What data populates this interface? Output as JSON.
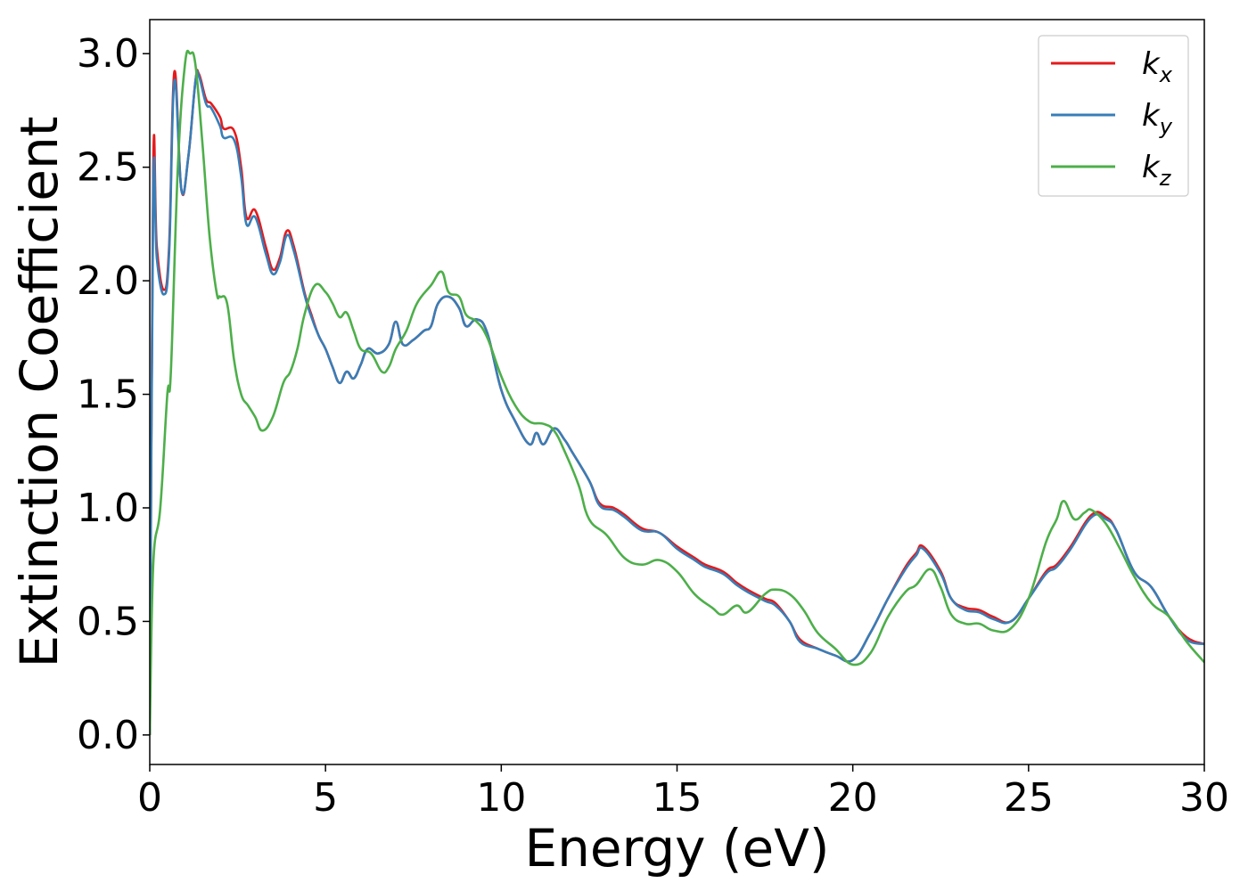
{
  "chart_data": {
    "type": "line",
    "title": "",
    "xlabel": "Energy (eV)",
    "ylabel": "Extinction Coefficient",
    "xlim": [
      0,
      30
    ],
    "ylim": [
      -0.13,
      3.15
    ],
    "xticks": [
      0,
      5,
      10,
      15,
      20,
      25,
      30
    ],
    "xtick_labels": [
      "0",
      "5",
      "10",
      "15",
      "20",
      "25",
      "30"
    ],
    "yticks": [
      0.0,
      0.5,
      1.0,
      1.5,
      2.0,
      2.5,
      3.0
    ],
    "ytick_labels": [
      "0.0",
      "0.5",
      "1.0",
      "1.5",
      "2.0",
      "2.5",
      "3.0"
    ],
    "grid": false,
    "legend_position": "top-right",
    "series": [
      {
        "name": "k",
        "subscript": "x",
        "color": "#e41a1c",
        "points": [
          [
            0,
            0
          ],
          [
            0.1,
            2.5
          ],
          [
            0.2,
            2.15
          ],
          [
            0.4,
            1.96
          ],
          [
            0.55,
            2.15
          ],
          [
            0.7,
            2.92
          ],
          [
            0.9,
            2.4
          ],
          [
            1.1,
            2.55
          ],
          [
            1.3,
            2.88
          ],
          [
            1.4,
            2.91
          ],
          [
            1.6,
            2.8
          ],
          [
            1.75,
            2.78
          ],
          [
            2.0,
            2.72
          ],
          [
            2.1,
            2.67
          ],
          [
            2.4,
            2.66
          ],
          [
            2.6,
            2.5
          ],
          [
            2.75,
            2.28
          ],
          [
            3.0,
            2.31
          ],
          [
            3.3,
            2.15
          ],
          [
            3.5,
            2.05
          ],
          [
            3.7,
            2.1
          ],
          [
            3.9,
            2.22
          ],
          [
            4.1,
            2.15
          ],
          [
            4.4,
            1.95
          ],
          [
            4.6,
            1.85
          ],
          [
            4.8,
            1.76
          ],
          [
            5.0,
            1.7
          ],
          [
            5.2,
            1.62
          ],
          [
            5.4,
            1.55
          ],
          [
            5.6,
            1.6
          ],
          [
            5.8,
            1.57
          ],
          [
            6.0,
            1.63
          ],
          [
            6.2,
            1.7
          ],
          [
            6.5,
            1.68
          ],
          [
            6.8,
            1.72
          ],
          [
            7.0,
            1.82
          ],
          [
            7.2,
            1.72
          ],
          [
            7.5,
            1.74
          ],
          [
            7.8,
            1.78
          ],
          [
            8.0,
            1.8
          ],
          [
            8.2,
            1.9
          ],
          [
            8.5,
            1.93
          ],
          [
            8.8,
            1.88
          ],
          [
            9.0,
            1.8
          ],
          [
            9.3,
            1.83
          ],
          [
            9.6,
            1.77
          ],
          [
            10.0,
            1.52
          ],
          [
            10.4,
            1.38
          ],
          [
            10.8,
            1.28
          ],
          [
            11.0,
            1.33
          ],
          [
            11.2,
            1.28
          ],
          [
            11.5,
            1.35
          ],
          [
            11.8,
            1.3
          ],
          [
            12.0,
            1.25
          ],
          [
            12.5,
            1.12
          ],
          [
            12.8,
            1.02
          ],
          [
            13.2,
            1.0
          ],
          [
            13.5,
            0.97
          ],
          [
            14.0,
            0.91
          ],
          [
            14.5,
            0.89
          ],
          [
            15.0,
            0.83
          ],
          [
            15.5,
            0.78
          ],
          [
            15.8,
            0.75
          ],
          [
            16.3,
            0.72
          ],
          [
            16.7,
            0.67
          ],
          [
            17.0,
            0.64
          ],
          [
            17.5,
            0.6
          ],
          [
            17.8,
            0.58
          ],
          [
            18.2,
            0.5
          ],
          [
            18.5,
            0.42
          ],
          [
            19.0,
            0.38
          ],
          [
            19.5,
            0.35
          ],
          [
            20.0,
            0.33
          ],
          [
            20.5,
            0.45
          ],
          [
            21.0,
            0.6
          ],
          [
            21.5,
            0.74
          ],
          [
            21.8,
            0.8
          ],
          [
            22.0,
            0.83
          ],
          [
            22.5,
            0.72
          ],
          [
            22.8,
            0.6
          ],
          [
            23.2,
            0.56
          ],
          [
            23.6,
            0.55
          ],
          [
            24.0,
            0.52
          ],
          [
            24.5,
            0.5
          ],
          [
            25.0,
            0.6
          ],
          [
            25.5,
            0.72
          ],
          [
            25.8,
            0.75
          ],
          [
            26.2,
            0.83
          ],
          [
            26.8,
            0.97
          ],
          [
            27.2,
            0.96
          ],
          [
            27.5,
            0.9
          ],
          [
            28.0,
            0.72
          ],
          [
            28.5,
            0.65
          ],
          [
            29.0,
            0.52
          ],
          [
            29.5,
            0.43
          ],
          [
            30.0,
            0.4
          ]
        ]
      },
      {
        "name": "k",
        "subscript": "y",
        "color": "#377eb8",
        "points": [
          [
            0,
            0
          ],
          [
            0.1,
            2.4
          ],
          [
            0.2,
            2.1
          ],
          [
            0.4,
            1.94
          ],
          [
            0.55,
            2.12
          ],
          [
            0.7,
            2.88
          ],
          [
            0.9,
            2.4
          ],
          [
            1.1,
            2.55
          ],
          [
            1.3,
            2.88
          ],
          [
            1.4,
            2.9
          ],
          [
            1.6,
            2.78
          ],
          [
            1.75,
            2.76
          ],
          [
            2.0,
            2.68
          ],
          [
            2.1,
            2.63
          ],
          [
            2.4,
            2.62
          ],
          [
            2.6,
            2.46
          ],
          [
            2.75,
            2.25
          ],
          [
            3.0,
            2.28
          ],
          [
            3.3,
            2.12
          ],
          [
            3.5,
            2.03
          ],
          [
            3.7,
            2.08
          ],
          [
            3.9,
            2.2
          ],
          [
            4.1,
            2.13
          ],
          [
            4.4,
            1.94
          ],
          [
            4.6,
            1.84
          ],
          [
            4.8,
            1.76
          ],
          [
            5.0,
            1.7
          ],
          [
            5.2,
            1.62
          ],
          [
            5.4,
            1.55
          ],
          [
            5.6,
            1.6
          ],
          [
            5.8,
            1.57
          ],
          [
            6.0,
            1.63
          ],
          [
            6.2,
            1.7
          ],
          [
            6.5,
            1.68
          ],
          [
            6.8,
            1.72
          ],
          [
            7.0,
            1.82
          ],
          [
            7.2,
            1.72
          ],
          [
            7.5,
            1.74
          ],
          [
            7.8,
            1.78
          ],
          [
            8.0,
            1.8
          ],
          [
            8.2,
            1.9
          ],
          [
            8.5,
            1.93
          ],
          [
            8.8,
            1.88
          ],
          [
            9.0,
            1.8
          ],
          [
            9.3,
            1.83
          ],
          [
            9.6,
            1.77
          ],
          [
            10.0,
            1.52
          ],
          [
            10.4,
            1.38
          ],
          [
            10.8,
            1.28
          ],
          [
            11.0,
            1.33
          ],
          [
            11.2,
            1.28
          ],
          [
            11.5,
            1.35
          ],
          [
            11.8,
            1.3
          ],
          [
            12.0,
            1.25
          ],
          [
            12.5,
            1.12
          ],
          [
            12.8,
            1.01
          ],
          [
            13.2,
            0.99
          ],
          [
            13.5,
            0.96
          ],
          [
            14.0,
            0.9
          ],
          [
            14.5,
            0.89
          ],
          [
            15.0,
            0.82
          ],
          [
            15.5,
            0.77
          ],
          [
            15.8,
            0.74
          ],
          [
            16.3,
            0.71
          ],
          [
            16.7,
            0.66
          ],
          [
            17.0,
            0.63
          ],
          [
            17.5,
            0.59
          ],
          [
            17.8,
            0.57
          ],
          [
            18.2,
            0.5
          ],
          [
            18.5,
            0.41
          ],
          [
            19.0,
            0.38
          ],
          [
            19.5,
            0.35
          ],
          [
            20.0,
            0.33
          ],
          [
            20.5,
            0.45
          ],
          [
            21.0,
            0.6
          ],
          [
            21.5,
            0.73
          ],
          [
            21.8,
            0.79
          ],
          [
            22.0,
            0.82
          ],
          [
            22.5,
            0.71
          ],
          [
            22.8,
            0.6
          ],
          [
            23.2,
            0.55
          ],
          [
            23.6,
            0.54
          ],
          [
            24.0,
            0.51
          ],
          [
            24.5,
            0.5
          ],
          [
            25.0,
            0.6
          ],
          [
            25.5,
            0.71
          ],
          [
            25.8,
            0.74
          ],
          [
            26.2,
            0.82
          ],
          [
            26.8,
            0.96
          ],
          [
            27.2,
            0.95
          ],
          [
            27.5,
            0.9
          ],
          [
            28.0,
            0.72
          ],
          [
            28.5,
            0.65
          ],
          [
            29.0,
            0.52
          ],
          [
            29.5,
            0.42
          ],
          [
            30.0,
            0.4
          ]
        ]
      },
      {
        "name": "k",
        "subscript": "z",
        "color": "#4daf4a",
        "points": [
          [
            0,
            0
          ],
          [
            0.1,
            0.75
          ],
          [
            0.3,
            1.0
          ],
          [
            0.5,
            1.5
          ],
          [
            0.6,
            1.6
          ],
          [
            0.8,
            2.5
          ],
          [
            1.0,
            2.95
          ],
          [
            1.15,
            3.0
          ],
          [
            1.3,
            2.95
          ],
          [
            1.5,
            2.6
          ],
          [
            1.7,
            2.2
          ],
          [
            1.9,
            1.95
          ],
          [
            2.0,
            1.93
          ],
          [
            2.2,
            1.9
          ],
          [
            2.4,
            1.65
          ],
          [
            2.6,
            1.5
          ],
          [
            2.8,
            1.45
          ],
          [
            3.0,
            1.4
          ],
          [
            3.2,
            1.34
          ],
          [
            3.5,
            1.4
          ],
          [
            3.8,
            1.55
          ],
          [
            4.0,
            1.6
          ],
          [
            4.2,
            1.7
          ],
          [
            4.4,
            1.85
          ],
          [
            4.7,
            1.98
          ],
          [
            5.0,
            1.95
          ],
          [
            5.2,
            1.9
          ],
          [
            5.4,
            1.84
          ],
          [
            5.6,
            1.86
          ],
          [
            5.8,
            1.78
          ],
          [
            6.0,
            1.7
          ],
          [
            6.3,
            1.68
          ],
          [
            6.6,
            1.6
          ],
          [
            6.8,
            1.62
          ],
          [
            7.0,
            1.7
          ],
          [
            7.3,
            1.78
          ],
          [
            7.6,
            1.9
          ],
          [
            8.0,
            1.98
          ],
          [
            8.3,
            2.04
          ],
          [
            8.5,
            1.95
          ],
          [
            8.8,
            1.93
          ],
          [
            9.0,
            1.85
          ],
          [
            9.3,
            1.82
          ],
          [
            9.6,
            1.75
          ],
          [
            10.0,
            1.58
          ],
          [
            10.4,
            1.45
          ],
          [
            10.8,
            1.38
          ],
          [
            11.2,
            1.37
          ],
          [
            11.5,
            1.34
          ],
          [
            11.8,
            1.25
          ],
          [
            12.2,
            1.1
          ],
          [
            12.5,
            0.95
          ],
          [
            13.0,
            0.88
          ],
          [
            13.5,
            0.78
          ],
          [
            14.0,
            0.75
          ],
          [
            14.5,
            0.77
          ],
          [
            15.0,
            0.72
          ],
          [
            15.5,
            0.62
          ],
          [
            16.0,
            0.56
          ],
          [
            16.3,
            0.53
          ],
          [
            16.7,
            0.57
          ],
          [
            17.0,
            0.54
          ],
          [
            17.5,
            0.62
          ],
          [
            17.8,
            0.64
          ],
          [
            18.2,
            0.62
          ],
          [
            18.6,
            0.55
          ],
          [
            19.0,
            0.45
          ],
          [
            19.5,
            0.38
          ],
          [
            20.0,
            0.31
          ],
          [
            20.5,
            0.36
          ],
          [
            21.0,
            0.52
          ],
          [
            21.5,
            0.63
          ],
          [
            21.8,
            0.66
          ],
          [
            22.2,
            0.73
          ],
          [
            22.5,
            0.65
          ],
          [
            22.8,
            0.53
          ],
          [
            23.2,
            0.49
          ],
          [
            23.6,
            0.49
          ],
          [
            24.0,
            0.46
          ],
          [
            24.5,
            0.47
          ],
          [
            25.0,
            0.6
          ],
          [
            25.5,
            0.85
          ],
          [
            25.8,
            0.95
          ],
          [
            26.0,
            1.03
          ],
          [
            26.3,
            0.95
          ],
          [
            26.6,
            0.98
          ],
          [
            26.8,
            0.99
          ],
          [
            27.2,
            0.93
          ],
          [
            27.6,
            0.82
          ],
          [
            28.0,
            0.7
          ],
          [
            28.5,
            0.58
          ],
          [
            29.0,
            0.52
          ],
          [
            29.5,
            0.41
          ],
          [
            30.0,
            0.32
          ]
        ]
      }
    ]
  }
}
